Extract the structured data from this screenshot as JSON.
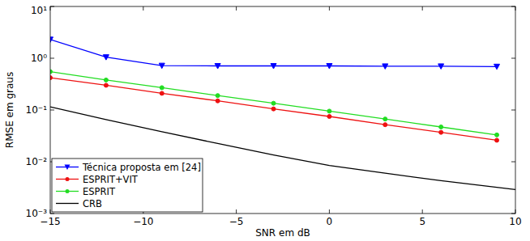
{
  "chart_data": {
    "type": "line",
    "x_label": "SNR em dB",
    "y_label": "RMSE em graus",
    "log": "y",
    "grid": false,
    "legend": "lower left",
    "x": [
      -15,
      -12,
      -9,
      -6,
      -3,
      0,
      3,
      6,
      9,
      10
    ],
    "xlim": [
      -15,
      10
    ],
    "xticks": [
      -15,
      -10,
      -5,
      0,
      5,
      10
    ],
    "ylim": [
      0.001,
      10
    ],
    "yticks": [
      {
        "value": 0.001,
        "label": "10⁻³"
      },
      {
        "value": 0.01,
        "label": "10⁻²"
      },
      {
        "value": 0.1,
        "label": "10⁻¹"
      },
      {
        "value": 1,
        "label": "10⁰"
      },
      {
        "value": 10,
        "label": "10¹"
      }
    ],
    "series": [
      {
        "name": "Técnica proposta em [24]",
        "color": "#0000ff",
        "marker": "triangle-down",
        "line_style": "solid",
        "values": [
          2.3,
          1.05,
          0.72,
          0.71,
          0.71,
          0.71,
          0.7,
          0.7,
          0.69,
          null
        ]
      },
      {
        "name": "ESPRIT+VIT",
        "color": "#ee1111",
        "marker": "circle",
        "line_style": "solid",
        "values": [
          0.42,
          0.3,
          0.21,
          0.15,
          0.105,
          0.075,
          0.052,
          0.037,
          0.026,
          null
        ]
      },
      {
        "name": "ESPRIT",
        "color": "#22dd22",
        "marker": "circle",
        "line_style": "solid",
        "values": [
          0.55,
          0.38,
          0.27,
          0.19,
          0.135,
          0.095,
          0.067,
          0.047,
          0.033,
          null
        ]
      },
      {
        "name": "CRB",
        "color": "#000000",
        "marker": "none",
        "line_style": "solid",
        "values": [
          0.115,
          0.065,
          0.038,
          0.0225,
          0.0135,
          0.0085,
          0.006,
          0.0043,
          0.0032,
          0.0029
        ]
      }
    ]
  }
}
